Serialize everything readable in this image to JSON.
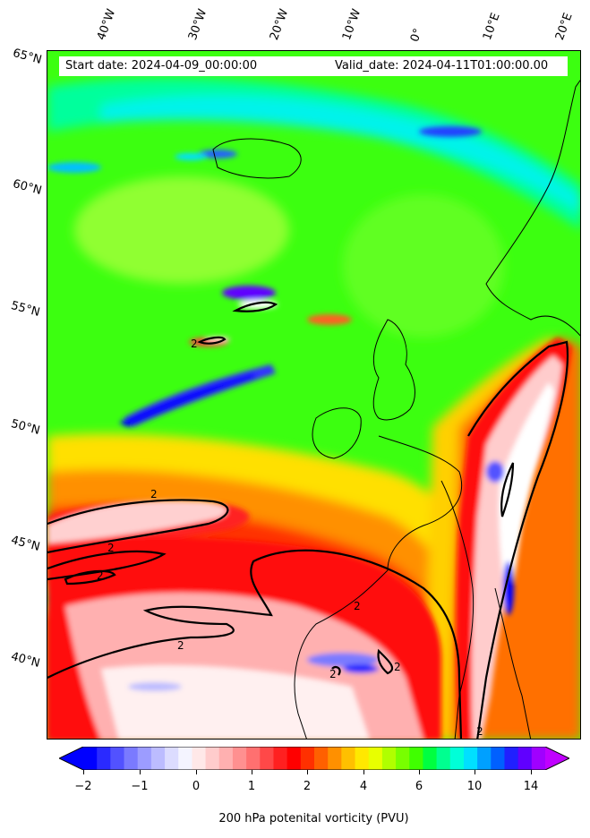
{
  "map": {
    "start_date": "Start date: 2024-04-09_00:00:00",
    "valid_date": "Valid_date: 2024-04-11T01:00:00.00",
    "lon_labels": [
      "40°W",
      "30°W",
      "20°W",
      "10°W",
      "0°",
      "10°E",
      "20°E"
    ],
    "lat_labels": [
      "65°N",
      "60°N",
      "55°N",
      "50°N",
      "45°N",
      "40°N"
    ],
    "contour_label": "2"
  },
  "colorbar": {
    "label": "200 hPa potenital vorticity (PVU)",
    "ticks": [
      "−2",
      "−1",
      "0",
      "1",
      "2",
      "4",
      "6",
      "10",
      "14"
    ],
    "colors": [
      "#0000ff",
      "#2a2aff",
      "#5252ff",
      "#7a7aff",
      "#9c9cff",
      "#bcbcff",
      "#dcdcff",
      "#f4f4ff",
      "#ffe8e8",
      "#ffcccc",
      "#ffb0b0",
      "#ff9090",
      "#ff7070",
      "#ff4848",
      "#ff2020",
      "#ff0000",
      "#ff3000",
      "#ff6000",
      "#ff9000",
      "#ffc000",
      "#ffe800",
      "#e8ff00",
      "#b0ff00",
      "#78ff00",
      "#40ff00",
      "#00ff40",
      "#00ff90",
      "#00ffd8",
      "#00e0ff",
      "#00a0ff",
      "#0060ff",
      "#2020ff",
      "#6000ff",
      "#a000ff"
    ]
  }
}
